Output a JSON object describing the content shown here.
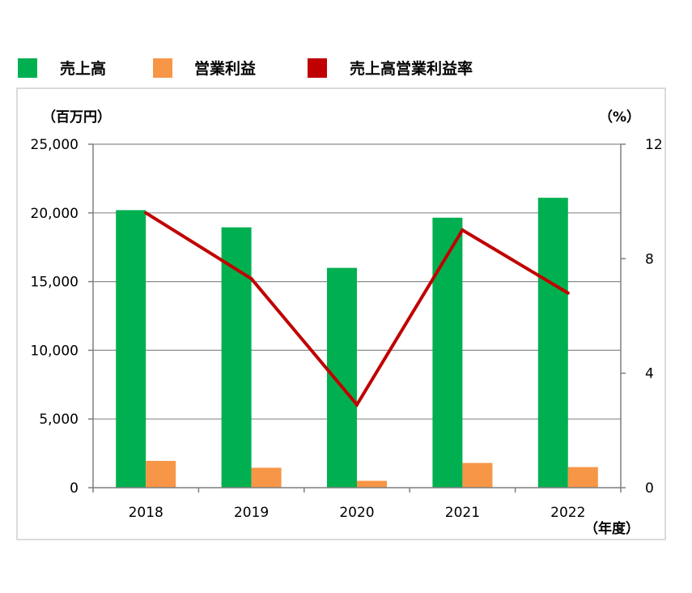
{
  "chart_data": {
    "type": "bar",
    "categories": [
      "2018",
      "2019",
      "2020",
      "2021",
      "2022"
    ],
    "series": [
      {
        "name": "売上高",
        "axis": "left",
        "type": "bar",
        "color": "#00b050",
        "values": [
          20200,
          18950,
          16000,
          19650,
          21100
        ]
      },
      {
        "name": "営業利益",
        "axis": "left",
        "type": "bar",
        "color": "#f79646",
        "values": [
          1950,
          1450,
          500,
          1800,
          1500
        ]
      },
      {
        "name": "売上高営業利益率",
        "axis": "right",
        "type": "line",
        "color": "#c00000",
        "values": [
          9.6,
          7.3,
          2.9,
          9.0,
          6.8
        ]
      }
    ],
    "left_axis": {
      "unit": "（百万円）",
      "ylim": [
        0,
        25000
      ],
      "ticks": [
        "0",
        "5,000",
        "10,000",
        "15,000",
        "20,000",
        "25,000"
      ],
      "tick_values": [
        0,
        5000,
        10000,
        15000,
        20000,
        25000
      ]
    },
    "right_axis": {
      "unit": "（%）",
      "ylim": [
        0,
        12
      ],
      "ticks": [
        "0",
        "4",
        "8",
        "12"
      ],
      "tick_values": [
        0,
        4,
        8,
        12
      ]
    },
    "x_axis": {
      "unit": "（年度）"
    },
    "grid": true,
    "legend_position": "top-left"
  }
}
